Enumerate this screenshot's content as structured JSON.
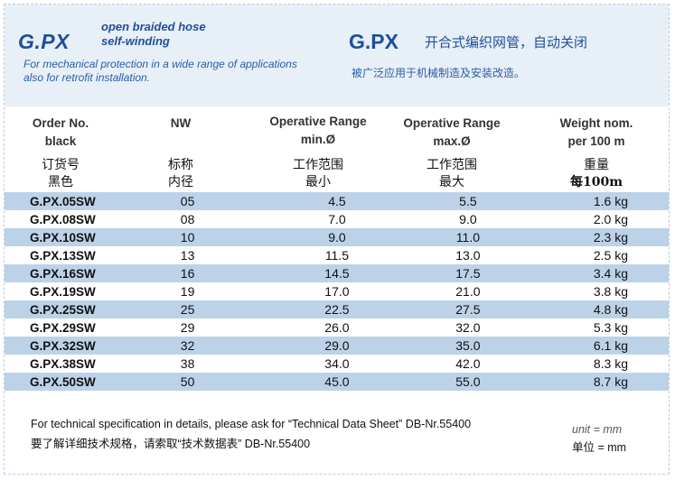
{
  "header": {
    "brand_left": "G.PX",
    "subtitle_line1": "open braided hose",
    "subtitle_line2": "self-winding",
    "desc_en_line1": "For mechanical protection in a wide range of applications",
    "desc_en_line2": "also for retrofit installation.",
    "brand_right": "G.PX",
    "title_cn": "开合式编织网管，自动关闭",
    "desc_cn": "被广泛应用于机械制造及安装改造。"
  },
  "columns": {
    "order": {
      "line1": "Order No.",
      "line2": "black",
      "cn1": "订货号",
      "cn2": "黑色"
    },
    "nw": {
      "line1": "NW",
      "line2": "",
      "cn1": "标称",
      "cn2": "内径"
    },
    "min": {
      "line1": "Operative Range",
      "line2": "min.Ø",
      "cn1": "工作范围",
      "cn2": "最小"
    },
    "max": {
      "line1": "Operative Range",
      "line2": "max.Ø",
      "cn1": "工作范围",
      "cn2": "最大"
    },
    "weight": {
      "line1": "Weight nom.",
      "line2": "per 100 m",
      "cn1": "重量",
      "cn2": "每100m"
    }
  },
  "rows": [
    {
      "order": "G.PX.05SW",
      "nw": "05",
      "min": "4.5",
      "max": "5.5",
      "weight": "1.6 kg"
    },
    {
      "order": "G.PX.08SW",
      "nw": "08",
      "min": "7.0",
      "max": "9.0",
      "weight": "2.0 kg"
    },
    {
      "order": "G.PX.10SW",
      "nw": "10",
      "min": "9.0",
      "max": "11.0",
      "weight": "2.3 kg"
    },
    {
      "order": "G.PX.13SW",
      "nw": "13",
      "min": "11.5",
      "max": "13.0",
      "weight": "2.5 kg"
    },
    {
      "order": "G.PX.16SW",
      "nw": "16",
      "min": "14.5",
      "max": "17.5",
      "weight": "3.4 kg"
    },
    {
      "order": "G.PX.19SW",
      "nw": "19",
      "min": "17.0",
      "max": "21.0",
      "weight": "3.8 kg"
    },
    {
      "order": "G.PX.25SW",
      "nw": "25",
      "min": "22.5",
      "max": "27.5",
      "weight": "4.8 kg"
    },
    {
      "order": "G.PX.29SW",
      "nw": "29",
      "min": "26.0",
      "max": "32.0",
      "weight": "5.3 kg"
    },
    {
      "order": "G.PX.32SW",
      "nw": "32",
      "min": "29.0",
      "max": "35.0",
      "weight": "6.1 kg"
    },
    {
      "order": "G.PX.38SW",
      "nw": "38",
      "min": "34.0",
      "max": "42.0",
      "weight": "8.3 kg"
    },
    {
      "order": "G.PX.50SW",
      "nw": "50",
      "min": "45.0",
      "max": "55.0",
      "weight": "8.7 kg"
    }
  ],
  "footer": {
    "note_en": "For technical specification in details, please ask for “Technical Data Sheet” DB-Nr.55400",
    "note_cn": "要了解详细技术规格，请索取“技术数据表” DB-Nr.55400",
    "unit_en": "unit = mm",
    "unit_cn": "单位 = mm"
  },
  "colors": {
    "brand": "#1f4f9a",
    "header_bg": "#e7eff7",
    "row_stripe": "#bcd2e8"
  }
}
